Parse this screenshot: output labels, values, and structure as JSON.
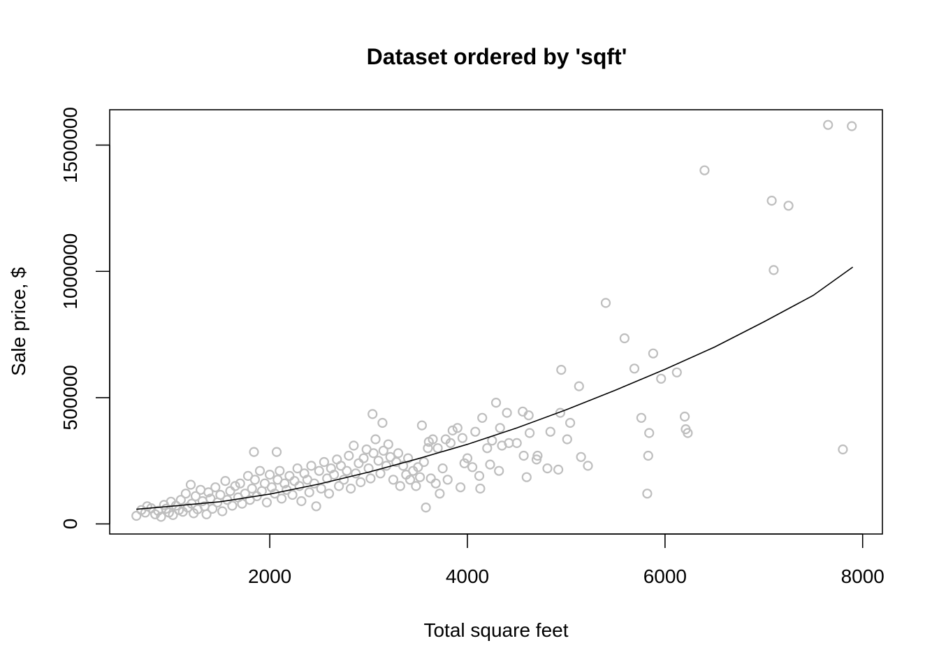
{
  "chart_data": {
    "type": "scatter",
    "title": "Dataset ordered by 'sqft'",
    "xlabel": "Total square feet",
    "ylabel": "Sale price, $",
    "xlim": [
      380,
      8200
    ],
    "ylim": [
      -40000,
      1640000
    ],
    "x_ticks": [
      2000,
      4000,
      6000,
      8000
    ],
    "y_ticks": [
      0,
      500000,
      1000000,
      1500000
    ],
    "x_tick_labels": [
      "2000",
      "4000",
      "6000",
      "8000"
    ],
    "y_tick_labels": [
      "0",
      "500000",
      "1000000",
      "1500000"
    ],
    "grid": false,
    "colors": {
      "points": "#bebebe",
      "line": "#000000",
      "frame": "#000000"
    },
    "series": [
      {
        "type": "scatter",
        "marker": "open-circle",
        "points": [
          [
            650,
            32000
          ],
          [
            700,
            55000
          ],
          [
            740,
            45000
          ],
          [
            760,
            70000
          ],
          [
            800,
            62000
          ],
          [
            840,
            38000
          ],
          [
            870,
            52000
          ],
          [
            900,
            28000
          ],
          [
            930,
            75000
          ],
          [
            950,
            60000
          ],
          [
            980,
            45000
          ],
          [
            1000,
            88000
          ],
          [
            1020,
            35000
          ],
          [
            1050,
            72000
          ],
          [
            1080,
            55000
          ],
          [
            1100,
            95000
          ],
          [
            1120,
            48000
          ],
          [
            1150,
            120000
          ],
          [
            1170,
            65000
          ],
          [
            1200,
            155000
          ],
          [
            1210,
            80000
          ],
          [
            1230,
            42000
          ],
          [
            1250,
            110000
          ],
          [
            1270,
            58000
          ],
          [
            1300,
            135000
          ],
          [
            1320,
            90000
          ],
          [
            1340,
            70000
          ],
          [
            1360,
            38000
          ],
          [
            1380,
            125000
          ],
          [
            1400,
            100000
          ],
          [
            1420,
            60000
          ],
          [
            1450,
            145000
          ],
          [
            1470,
            85000
          ],
          [
            1500,
            115000
          ],
          [
            1520,
            50000
          ],
          [
            1550,
            170000
          ],
          [
            1570,
            95000
          ],
          [
            1600,
            130000
          ],
          [
            1620,
            72000
          ],
          [
            1650,
            150000
          ],
          [
            1680,
            105000
          ],
          [
            1700,
            160000
          ],
          [
            1720,
            80000
          ],
          [
            1750,
            120000
          ],
          [
            1780,
            190000
          ],
          [
            1800,
            95000
          ],
          [
            1820,
            140000
          ],
          [
            1840,
            285000
          ],
          [
            1850,
            175000
          ],
          [
            1870,
            110000
          ],
          [
            1900,
            210000
          ],
          [
            1920,
            130000
          ],
          [
            1950,
            160000
          ],
          [
            1970,
            85000
          ],
          [
            2000,
            195000
          ],
          [
            2020,
            145000
          ],
          [
            2050,
            120000
          ],
          [
            2070,
            285000
          ],
          [
            2080,
            175000
          ],
          [
            2100,
            210000
          ],
          [
            2120,
            100000
          ],
          [
            2150,
            160000
          ],
          [
            2170,
            135000
          ],
          [
            2200,
            190000
          ],
          [
            2230,
            115000
          ],
          [
            2250,
            170000
          ],
          [
            2280,
            220000
          ],
          [
            2300,
            150000
          ],
          [
            2320,
            90000
          ],
          [
            2350,
            200000
          ],
          [
            2380,
            175000
          ],
          [
            2400,
            125000
          ],
          [
            2420,
            230000
          ],
          [
            2450,
            160000
          ],
          [
            2470,
            70000
          ],
          [
            2500,
            210000
          ],
          [
            2520,
            140000
          ],
          [
            2550,
            245000
          ],
          [
            2580,
            180000
          ],
          [
            2600,
            120000
          ],
          [
            2620,
            220000
          ],
          [
            2650,
            195000
          ],
          [
            2680,
            255000
          ],
          [
            2700,
            150000
          ],
          [
            2720,
            230000
          ],
          [
            2750,
            175000
          ],
          [
            2780,
            210000
          ],
          [
            2800,
            270000
          ],
          [
            2820,
            140000
          ],
          [
            2850,
            310000
          ],
          [
            2870,
            200000
          ],
          [
            2900,
            240000
          ],
          [
            2920,
            165000
          ],
          [
            2950,
            260000
          ],
          [
            2980,
            295000
          ],
          [
            3000,
            220000
          ],
          [
            3020,
            180000
          ],
          [
            3040,
            435000
          ],
          [
            3050,
            280000
          ],
          [
            3070,
            335000
          ],
          [
            3100,
            250000
          ],
          [
            3120,
            200000
          ],
          [
            3140,
            400000
          ],
          [
            3150,
            290000
          ],
          [
            3180,
            230000
          ],
          [
            3200,
            315000
          ],
          [
            3220,
            265000
          ],
          [
            3250,
            175000
          ],
          [
            3280,
            245000
          ],
          [
            3300,
            280000
          ],
          [
            3320,
            150000
          ],
          [
            3350,
            230000
          ],
          [
            3380,
            195000
          ],
          [
            3400,
            260000
          ],
          [
            3420,
            175000
          ],
          [
            3450,
            210000
          ],
          [
            3480,
            150000
          ],
          [
            3500,
            225000
          ],
          [
            3520,
            185000
          ],
          [
            3540,
            390000
          ],
          [
            3560,
            245000
          ],
          [
            3580,
            65000
          ],
          [
            3600,
            300000
          ],
          [
            3610,
            325000
          ],
          [
            3630,
            180000
          ],
          [
            3650,
            335000
          ],
          [
            3680,
            160000
          ],
          [
            3700,
            300000
          ],
          [
            3720,
            120000
          ],
          [
            3750,
            220000
          ],
          [
            3780,
            335000
          ],
          [
            3800,
            175000
          ],
          [
            3830,
            320000
          ],
          [
            3850,
            370000
          ],
          [
            3900,
            380000
          ],
          [
            3930,
            145000
          ],
          [
            3950,
            340000
          ],
          [
            3970,
            240000
          ],
          [
            4000,
            260000
          ],
          [
            4050,
            225000
          ],
          [
            4080,
            365000
          ],
          [
            4120,
            190000
          ],
          [
            4130,
            140000
          ],
          [
            4150,
            420000
          ],
          [
            4200,
            300000
          ],
          [
            4230,
            235000
          ],
          [
            4250,
            330000
          ],
          [
            4290,
            480000
          ],
          [
            4320,
            210000
          ],
          [
            4330,
            380000
          ],
          [
            4350,
            310000
          ],
          [
            4400,
            440000
          ],
          [
            4420,
            320000
          ],
          [
            4500,
            320000
          ],
          [
            4560,
            445000
          ],
          [
            4570,
            270000
          ],
          [
            4600,
            185000
          ],
          [
            4620,
            430000
          ],
          [
            4630,
            360000
          ],
          [
            4700,
            255000
          ],
          [
            4710,
            270000
          ],
          [
            4810,
            220000
          ],
          [
            4840,
            365000
          ],
          [
            4920,
            215000
          ],
          [
            4940,
            440000
          ],
          [
            4950,
            610000
          ],
          [
            5010,
            335000
          ],
          [
            5040,
            400000
          ],
          [
            5130,
            545000
          ],
          [
            5150,
            265000
          ],
          [
            5220,
            230000
          ],
          [
            5400,
            875000
          ],
          [
            5590,
            735000
          ],
          [
            5690,
            615000
          ],
          [
            5760,
            420000
          ],
          [
            5820,
            120000
          ],
          [
            5830,
            270000
          ],
          [
            5840,
            360000
          ],
          [
            5880,
            675000
          ],
          [
            5960,
            575000
          ],
          [
            6120,
            600000
          ],
          [
            6200,
            425000
          ],
          [
            6210,
            375000
          ],
          [
            6230,
            360000
          ],
          [
            6400,
            1400000
          ],
          [
            7080,
            1280000
          ],
          [
            7100,
            1005000
          ],
          [
            7250,
            1260000
          ],
          [
            7650,
            1580000
          ],
          [
            7800,
            295000
          ],
          [
            7890,
            1575000
          ]
        ]
      },
      {
        "type": "line",
        "points": [
          [
            650,
            58000
          ],
          [
            1000,
            70000
          ],
          [
            1500,
            88000
          ],
          [
            2000,
            118000
          ],
          [
            2500,
            158000
          ],
          [
            3000,
            205000
          ],
          [
            3500,
            258000
          ],
          [
            4000,
            315000
          ],
          [
            4500,
            380000
          ],
          [
            5000,
            452000
          ],
          [
            5500,
            530000
          ],
          [
            6000,
            612000
          ],
          [
            6500,
            700000
          ],
          [
            7000,
            800000
          ],
          [
            7500,
            905000
          ],
          [
            7900,
            1017000
          ]
        ]
      }
    ]
  }
}
